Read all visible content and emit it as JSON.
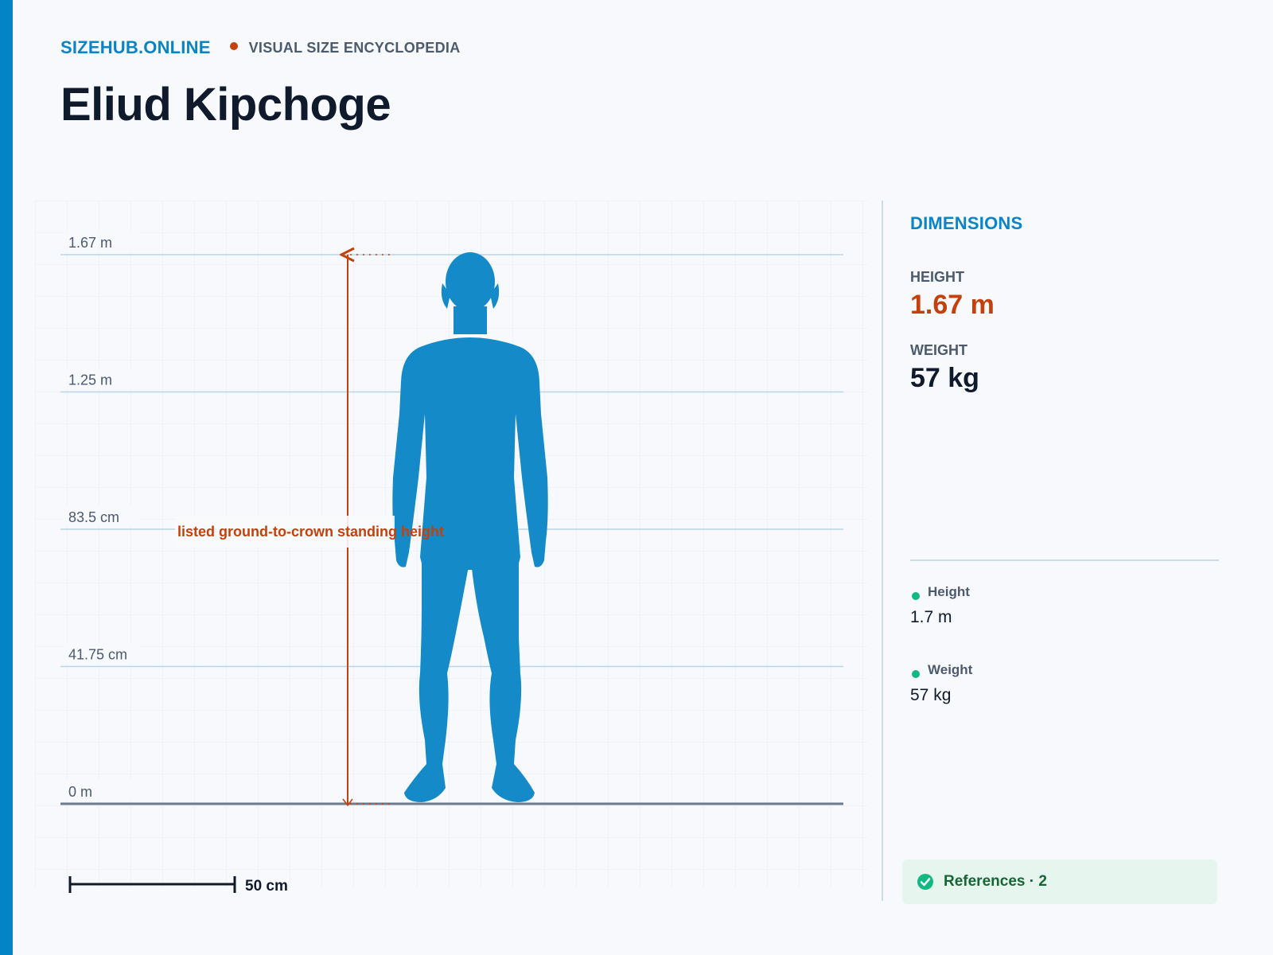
{
  "header": {
    "brand": "SIZEHUB.ONLINE",
    "subtitle": "VISUAL SIZE ENCYCLOPEDIA",
    "title": "Eliud Kipchoge"
  },
  "diagram": {
    "ticks": [
      {
        "label": "1.67 m",
        "value": 1.67
      },
      {
        "label": "1.25 m",
        "value": 1.2525
      },
      {
        "label": "83.5 cm",
        "value": 0.835
      },
      {
        "label": "41.75 cm",
        "value": 0.4175
      },
      {
        "label": "0 m",
        "value": 0
      }
    ],
    "height_value": 1.67,
    "annotation": "listed ground-to-crown standing height",
    "scale_label": "50 cm",
    "scale_value": 0.5
  },
  "dimensions": {
    "title": "DIMENSIONS",
    "height_label": "HEIGHT",
    "height_value": "1.67 m",
    "weight_label": "WEIGHT",
    "weight_value": "57 kg"
  },
  "references": {
    "items": [
      {
        "label": "Height",
        "value": "1.7 m"
      },
      {
        "label": "Weight",
        "value": "57 kg"
      }
    ],
    "summary": "References · 2"
  },
  "colors": {
    "accent": "#0284c7",
    "silhouette": "#148ac9",
    "annotation": "#c2410c",
    "ok": "#10b981"
  }
}
